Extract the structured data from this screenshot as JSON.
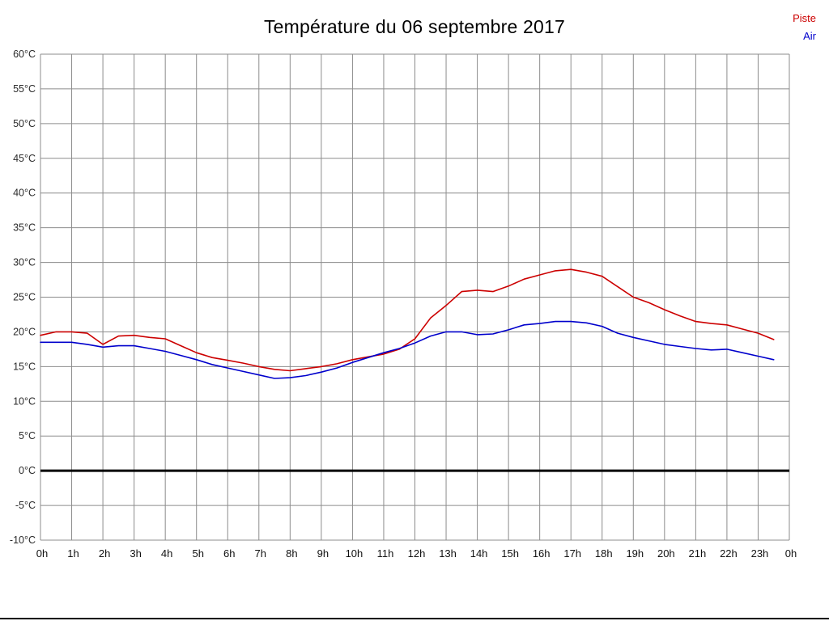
{
  "title": "Température du 06 septembre 2017",
  "legend": [
    {
      "label": "Piste",
      "color": "#cc0000"
    },
    {
      "label": "Air",
      "color": "#0000cc"
    }
  ],
  "chart_data": {
    "type": "line",
    "title": "Température du 06 septembre 2017",
    "xlabel": "",
    "ylabel": "°C",
    "ylim": [
      -10,
      60
    ],
    "x_range": [
      0,
      24
    ],
    "grid": true,
    "legend_position": "top-right",
    "grid_color": "#8c8c8c",
    "zero_line": {
      "value": 0,
      "color": "#000000",
      "width": 3
    },
    "y_ticks": [
      {
        "value": 60,
        "label": "60°C"
      },
      {
        "value": 55,
        "label": "55°C"
      },
      {
        "value": 50,
        "label": "50°C"
      },
      {
        "value": 45,
        "label": "45°C"
      },
      {
        "value": 40,
        "label": "40°C"
      },
      {
        "value": 35,
        "label": "35°C"
      },
      {
        "value": 30,
        "label": "30°C"
      },
      {
        "value": 25,
        "label": "25°C"
      },
      {
        "value": 20,
        "label": "20°C"
      },
      {
        "value": 15,
        "label": "15°C"
      },
      {
        "value": 10,
        "label": "10°C"
      },
      {
        "value": 5,
        "label": "5°C"
      },
      {
        "value": 0,
        "label": "0°C"
      },
      {
        "value": -5,
        "label": "-5°C"
      },
      {
        "value": -10,
        "label": "-10°C"
      }
    ],
    "x_tick_labels": [
      "0h",
      "1h",
      "2h",
      "3h",
      "4h",
      "5h",
      "6h",
      "7h",
      "8h",
      "9h",
      "10h",
      "11h",
      "12h",
      "13h",
      "14h",
      "15h",
      "16h",
      "17h",
      "18h",
      "19h",
      "20h",
      "21h",
      "22h",
      "23h",
      "0h"
    ],
    "x": [
      0,
      0.5,
      1,
      1.5,
      2,
      2.5,
      3,
      3.5,
      4,
      4.5,
      5,
      5.5,
      6,
      6.5,
      7,
      7.5,
      8,
      8.5,
      9,
      9.5,
      10,
      10.5,
      11,
      11.5,
      12,
      12.5,
      13,
      13.5,
      14,
      14.5,
      15,
      15.5,
      16,
      16.5,
      17,
      17.5,
      18,
      18.5,
      19,
      19.5,
      20,
      20.5,
      21,
      21.5,
      22,
      22.5,
      23,
      23.5
    ],
    "series": [
      {
        "name": "Piste",
        "color": "#cc0000",
        "values": [
          19.5,
          20,
          20,
          19.8,
          18.2,
          19.4,
          19.5,
          19.2,
          19,
          18,
          17,
          16.3,
          15.9,
          15.5,
          15,
          14.6,
          14.4,
          14.7,
          15,
          15.4,
          16,
          16.4,
          16.8,
          17.5,
          19,
          22,
          23.8,
          25.8,
          26,
          25.8,
          26.6,
          27.6,
          28.2,
          28.8,
          29,
          28.6,
          28,
          26.5,
          25,
          24.2,
          23.2,
          22.3,
          21.5,
          21.2,
          21,
          20.4,
          19.8,
          18.9
        ]
      },
      {
        "name": "Air",
        "color": "#0000cc",
        "values": [
          18.5,
          18.5,
          18.5,
          18.2,
          17.8,
          18,
          18,
          17.6,
          17.2,
          16.6,
          16,
          15.3,
          14.8,
          14.3,
          13.8,
          13.3,
          13.4,
          13.7,
          14.2,
          14.8,
          15.6,
          16.3,
          17,
          17.6,
          18.4,
          19.4,
          20,
          20,
          19.6,
          19.7,
          20.3,
          21,
          21.2,
          21.5,
          21.5,
          21.3,
          20.8,
          19.8,
          19.2,
          18.7,
          18.2,
          17.9,
          17.6,
          17.4,
          17.5,
          17,
          16.5,
          16
        ]
      }
    ]
  }
}
